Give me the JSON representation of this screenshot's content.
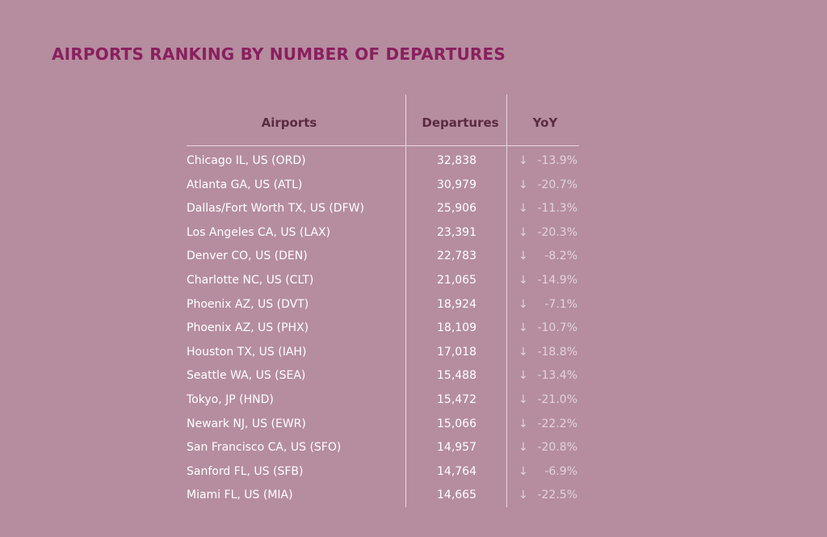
{
  "title": "AIRPORTS RANKING BY NUMBER OF DEPARTURES",
  "colors": {
    "background": "#b58d9f",
    "title": "#8a1f5e",
    "header": "#5a2b40",
    "text": "#ffffff",
    "yoy": "#e3d3da",
    "rule": "#e6d7dd"
  },
  "icons": {
    "yoy_arrow": "arrow-down-icon"
  },
  "chart_data": {
    "type": "table",
    "title": "AIRPORTS RANKING BY NUMBER OF DEPARTURES",
    "columns": [
      "Airports",
      "Departures",
      "YoY"
    ],
    "rows": [
      {
        "airport": "Chicago IL, US (ORD)",
        "departures": "32,838",
        "yoy": "-13.9%"
      },
      {
        "airport": "Atlanta GA, US (ATL)",
        "departures": "30,979",
        "yoy": "-20.7%"
      },
      {
        "airport": "Dallas/Fort Worth TX, US (DFW)",
        "departures": "25,906",
        "yoy": "-11.3%"
      },
      {
        "airport": "Los Angeles CA, US (LAX)",
        "departures": "23,391",
        "yoy": "-20.3%"
      },
      {
        "airport": "Denver CO, US (DEN)",
        "departures": "22,783",
        "yoy": "-8.2%"
      },
      {
        "airport": "Charlotte NC, US (CLT)",
        "departures": "21,065",
        "yoy": "-14.9%"
      },
      {
        "airport": "Phoenix AZ, US (DVT)",
        "departures": "18,924",
        "yoy": "-7.1%"
      },
      {
        "airport": "Phoenix AZ, US (PHX)",
        "departures": "18,109",
        "yoy": "-10.7%"
      },
      {
        "airport": "Houston TX, US (IAH)",
        "departures": "17,018",
        "yoy": "-18.8%"
      },
      {
        "airport": "Seattle WA, US (SEA)",
        "departures": "15,488",
        "yoy": "-13.4%"
      },
      {
        "airport": "Tokyo, JP (HND)",
        "departures": "15,472",
        "yoy": "-21.0%"
      },
      {
        "airport": "Newark NJ, US (EWR)",
        "departures": "15,066",
        "yoy": "-22.2%"
      },
      {
        "airport": "San Francisco CA, US (SFO)",
        "departures": "14,957",
        "yoy": "-20.8%"
      },
      {
        "airport": "Sanford FL, US (SFB)",
        "departures": "14,764",
        "yoy": "-6.9%"
      },
      {
        "airport": "Miami FL, US (MIA)",
        "departures": "14,665",
        "yoy": "-22.5%"
      }
    ]
  }
}
